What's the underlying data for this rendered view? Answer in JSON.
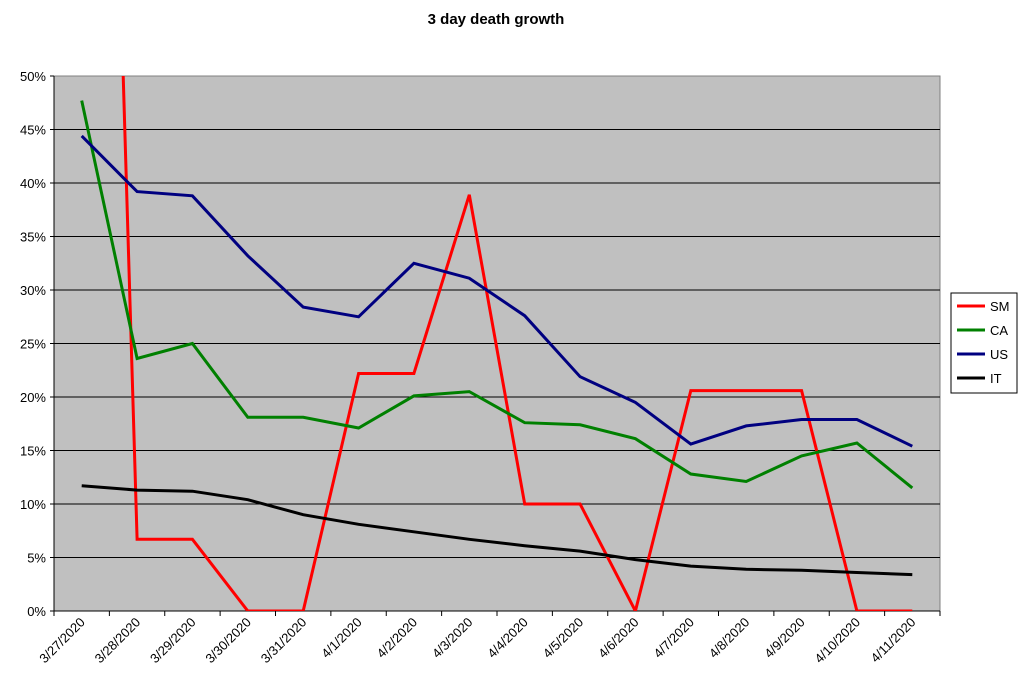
{
  "chart_data": {
    "type": "line",
    "title": "3 day death growth",
    "xlabel": "",
    "ylabel": "",
    "categories": [
      "3/27/2020",
      "3/28/2020",
      "3/29/2020",
      "3/30/2020",
      "3/31/2020",
      "4/1/2020",
      "4/2/2020",
      "4/3/2020",
      "4/4/2020",
      "4/5/2020",
      "4/6/2020",
      "4/7/2020",
      "4/8/2020",
      "4/9/2020",
      "4/10/2020",
      "4/11/2020"
    ],
    "x_index": [
      0.5,
      1.5,
      2.5,
      3.5,
      4.5,
      5.5,
      6.5,
      7.5,
      8.5,
      9.5,
      10.5,
      11.5,
      12.5,
      13.5,
      14.5,
      15.5
    ],
    "y_ticks": [
      "0%",
      "5%",
      "10%",
      "15%",
      "20%",
      "25%",
      "30%",
      "35%",
      "40%",
      "45%",
      "50%"
    ],
    "ylim": [
      0,
      50
    ],
    "grid": true,
    "legend_position": "right",
    "background_color": "#c0c0c0",
    "series": [
      {
        "name": "SM",
        "color": "#ff0000",
        "points": [
          [
            1.25,
            50
          ],
          [
            1.5,
            6.7
          ],
          [
            2.5,
            6.7
          ],
          [
            3.5,
            0
          ],
          [
            4.5,
            0
          ],
          [
            5.5,
            22.2
          ],
          [
            6.5,
            22.2
          ],
          [
            7.5,
            38.9
          ],
          [
            8.5,
            10.0
          ],
          [
            9.5,
            10.0
          ],
          [
            10.5,
            0
          ],
          [
            11.5,
            20.6
          ],
          [
            12.5,
            20.6
          ],
          [
            13.5,
            20.6
          ],
          [
            14.5,
            0
          ],
          [
            15.5,
            0
          ]
        ]
      },
      {
        "name": "CA",
        "color": "#008000",
        "points": [
          [
            0.5,
            47.7
          ],
          [
            1.5,
            23.6
          ],
          [
            2.5,
            25.0
          ],
          [
            3.5,
            18.1
          ],
          [
            4.5,
            18.1
          ],
          [
            5.5,
            17.1
          ],
          [
            6.5,
            20.1
          ],
          [
            7.5,
            20.5
          ],
          [
            8.5,
            17.6
          ],
          [
            9.5,
            17.4
          ],
          [
            10.5,
            16.1
          ],
          [
            11.5,
            12.8
          ],
          [
            12.5,
            12.1
          ],
          [
            13.5,
            14.5
          ],
          [
            14.5,
            15.7
          ],
          [
            15.5,
            11.5
          ]
        ]
      },
      {
        "name": "US",
        "color": "#000080",
        "points": [
          [
            0.5,
            44.4
          ],
          [
            1.5,
            39.2
          ],
          [
            2.5,
            38.8
          ],
          [
            3.5,
            33.2
          ],
          [
            4.5,
            28.4
          ],
          [
            5.5,
            27.5
          ],
          [
            6.5,
            32.5
          ],
          [
            7.5,
            31.1
          ],
          [
            8.5,
            27.6
          ],
          [
            9.5,
            21.9
          ],
          [
            10.5,
            19.5
          ],
          [
            11.5,
            15.6
          ],
          [
            12.5,
            17.3
          ],
          [
            13.5,
            17.9
          ],
          [
            14.5,
            17.9
          ],
          [
            15.5,
            15.4
          ]
        ]
      },
      {
        "name": "IT",
        "color": "#000000",
        "points": [
          [
            0.5,
            11.7
          ],
          [
            1.5,
            11.3
          ],
          [
            2.5,
            11.2
          ],
          [
            3.5,
            10.4
          ],
          [
            4.5,
            9.0
          ],
          [
            5.5,
            8.1
          ],
          [
            6.5,
            7.4
          ],
          [
            7.5,
            6.7
          ],
          [
            8.5,
            6.1
          ],
          [
            9.5,
            5.6
          ],
          [
            10.5,
            4.8
          ],
          [
            11.5,
            4.2
          ],
          [
            12.5,
            3.9
          ],
          [
            13.5,
            3.8
          ],
          [
            14.5,
            3.6
          ],
          [
            15.5,
            3.4
          ]
        ]
      }
    ]
  }
}
